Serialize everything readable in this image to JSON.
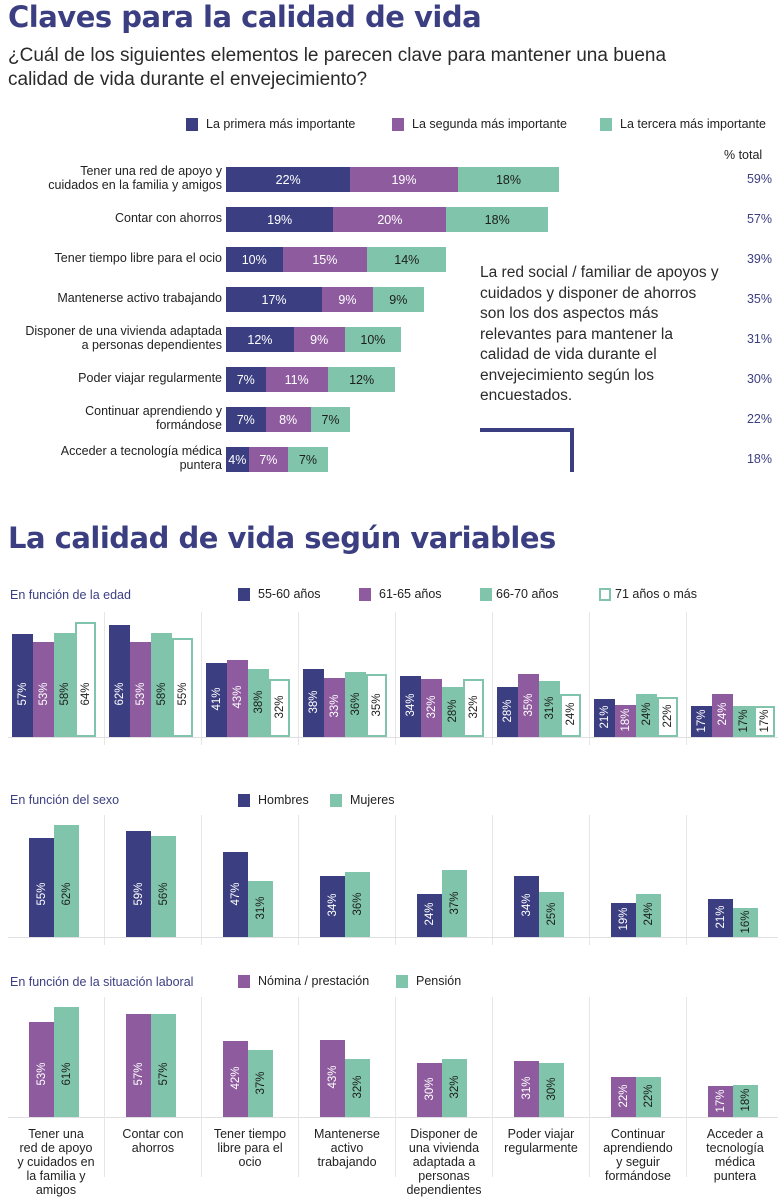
{
  "colors": {
    "first": "#3b3f82",
    "second": "#8f5b9f",
    "third": "#7fc4ab",
    "outline": "#7fc4ab",
    "title": "#3b3f82"
  },
  "section1": {
    "title": "Claves para la calidad de vida",
    "subtitle_line1": "¿Cuál de los siguientes elementos le parecen clave para mantener una buena",
    "subtitle_line2": "calidad de vida durante el envejecimiento?",
    "total_header": "% total",
    "callout": "La red social / familiar de apoyos y cuidados y disponer de ahorros son los dos aspectos más relevantes para mantener la calidad de vida durante el envejecimiento según los encuestados."
  },
  "section2": {
    "title": "La calidad de vida según variables",
    "age_label": "En función de la edad",
    "sex_label": "En función del sexo",
    "labor_label": "En función de la situación laboral"
  },
  "chart_data": [
    {
      "type": "bar",
      "orientation": "horizontal-stacked",
      "title": "Claves para la calidad de vida",
      "categories": [
        "Tener una red de apoyo y cuidados en la familia y amigos",
        "Contar con ahorros",
        "Tener tiempo libre para el ocio",
        "Mantenerse activo trabajando",
        "Disponer de una vivienda adaptada a personas dependientes",
        "Poder viajar regularmente",
        "Continuar aprendiendo y formándose",
        "Acceder a tecnología médica puntera"
      ],
      "category_labels": [
        [
          "Tener una red de apoyo y",
          "cuidados en la familia y amigos"
        ],
        [
          "Contar con ahorros"
        ],
        [
          "Tener tiempo libre para el ocio"
        ],
        [
          "Mantenerse activo trabajando"
        ],
        [
          "Disponer de una vivienda adaptada",
          "a personas dependientes"
        ],
        [
          "Poder viajar regularmente"
        ],
        [
          "Continuar aprendiendo y",
          "formándose"
        ],
        [
          "Acceder a tecnología médica",
          "puntera"
        ]
      ],
      "series": [
        {
          "name": "La primera más importante",
          "values": [
            22,
            19,
            10,
            17,
            12,
            7,
            7,
            4
          ]
        },
        {
          "name": "La segunda más importante",
          "values": [
            19,
            20,
            15,
            9,
            9,
            11,
            8,
            7
          ]
        },
        {
          "name": "La tercera más importante",
          "values": [
            18,
            18,
            14,
            9,
            10,
            12,
            7,
            7
          ]
        }
      ],
      "totals": [
        59,
        57,
        39,
        35,
        31,
        30,
        22,
        18
      ],
      "unit": "%",
      "legend": "top-right"
    },
    {
      "type": "bar",
      "title": "En función de la edad",
      "categories": [
        "Tener una red de apoyo y cuidados en la familia y amigos",
        "Contar con ahorros",
        "Tener tiempo libre para el ocio",
        "Mantenerse activo trabajando",
        "Disponer de una vivienda adaptada a personas dependientes",
        "Poder viajar regularmente",
        "Continuar aprendiendo y seguir formándose",
        "Acceder a tecnología médica puntera"
      ],
      "series": [
        {
          "name": "55-60 años",
          "values": [
            57,
            62,
            41,
            38,
            34,
            28,
            21,
            17
          ]
        },
        {
          "name": "61-65 años",
          "values": [
            53,
            53,
            43,
            33,
            32,
            35,
            18,
            24
          ]
        },
        {
          "name": "66-70 años",
          "values": [
            58,
            58,
            38,
            36,
            28,
            31,
            24,
            17
          ]
        },
        {
          "name": "71 años o más",
          "values": [
            64,
            55,
            32,
            35,
            32,
            24,
            22,
            17
          ]
        }
      ],
      "unit": "%",
      "legend": "top"
    },
    {
      "type": "bar",
      "title": "En función del sexo",
      "categories": [
        "Tener una red de apoyo y cuidados en la familia y amigos",
        "Contar con ahorros",
        "Tener tiempo libre para el ocio",
        "Mantenerse activo trabajando",
        "Disponer de una vivienda adaptada a personas dependientes",
        "Poder viajar regularmente",
        "Continuar aprendiendo y seguir formándose",
        "Acceder a tecnología médica puntera"
      ],
      "series": [
        {
          "name": "Hombres",
          "values": [
            55,
            59,
            47,
            34,
            24,
            34,
            19,
            21
          ]
        },
        {
          "name": "Mujeres",
          "values": [
            62,
            56,
            31,
            36,
            37,
            25,
            24,
            16
          ]
        }
      ],
      "unit": "%",
      "legend": "top"
    },
    {
      "type": "bar",
      "title": "En función de la situación laboral",
      "categories": [
        "Tener una red de apoyo y cuidados en la familia y amigos",
        "Contar con ahorros",
        "Tener tiempo libre para el ocio",
        "Mantenerse activo trabajando",
        "Disponer de una vivienda adaptada a personas dependientes",
        "Poder viajar regularmente",
        "Continuar aprendiendo y seguir formándose",
        "Acceder a tecnología médica puntera"
      ],
      "category_labels": [
        [
          "Tener una",
          "red de apoyo",
          "y cuidados en",
          "la familia y",
          "amigos"
        ],
        [
          "Contar con",
          "ahorros"
        ],
        [
          "Tener tiempo",
          "libre para el",
          "ocio"
        ],
        [
          "Mantenerse",
          "activo",
          "trabajando"
        ],
        [
          "Disponer de",
          "una vivienda",
          "adaptada a",
          "personas",
          "dependientes"
        ],
        [
          "Poder viajar",
          "regularmente"
        ],
        [
          "Continuar",
          "aprendiendo",
          "y seguir",
          "formándose"
        ],
        [
          "Acceder a",
          "tecnología",
          "médica",
          "puntera"
        ]
      ],
      "series": [
        {
          "name": "Nómina / prestación",
          "values": [
            53,
            57,
            42,
            43,
            30,
            31,
            22,
            17
          ]
        },
        {
          "name": "Pensión",
          "values": [
            61,
            57,
            37,
            32,
            32,
            30,
            22,
            18
          ]
        }
      ],
      "unit": "%",
      "legend": "top"
    }
  ]
}
